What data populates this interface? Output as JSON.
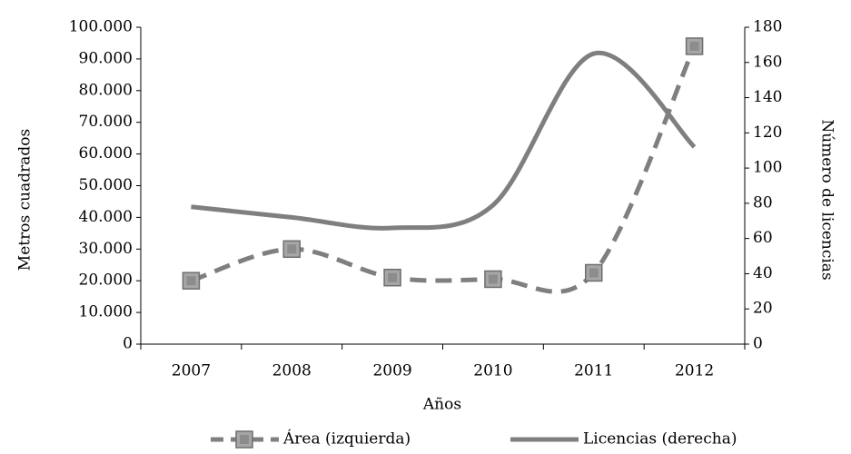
{
  "chart_data": {
    "type": "line",
    "x_label": "Años",
    "y_label": "Metros cuadrados",
    "y2_label": "Número de licencias",
    "categories": [
      "2007",
      "2008",
      "2009",
      "2010",
      "2011",
      "2012"
    ],
    "series": [
      {
        "name": "Área (izquierda)",
        "color": "#7f7f7f",
        "dashed": true,
        "markers": true,
        "values": [
          20000,
          30000,
          21000,
          20500,
          22500,
          94000
        ]
      },
      {
        "name": "Licencias (derecha)",
        "color": "#7f7f7f",
        "axis": "y2",
        "values": [
          78,
          72,
          66,
          79,
          165,
          112
        ]
      }
    ],
    "ylim": [
      0,
      100000
    ],
    "yticks": [
      0,
      {
        "value": 10000,
        "label": "10.000"
      },
      {
        "value": 20000,
        "label": "20.000"
      },
      {
        "value": 30000,
        "label": "30.000"
      },
      {
        "value": 40000,
        "label": "40.000"
      },
      {
        "value": 50000,
        "label": "50.000"
      },
      {
        "value": 60000,
        "label": "60.000"
      },
      {
        "value": 70000,
        "label": "70.000"
      },
      {
        "value": 80000,
        "label": "80.000"
      },
      {
        "value": 90000,
        "label": "90.000"
      },
      {
        "value": 100000,
        "label": "100.000"
      }
    ],
    "y2lim": [
      0,
      180
    ],
    "y2ticks": [
      0,
      20,
      40,
      60,
      80,
      100,
      120,
      140,
      160,
      180
    ],
    "smooth": true,
    "legend": "bottom"
  }
}
